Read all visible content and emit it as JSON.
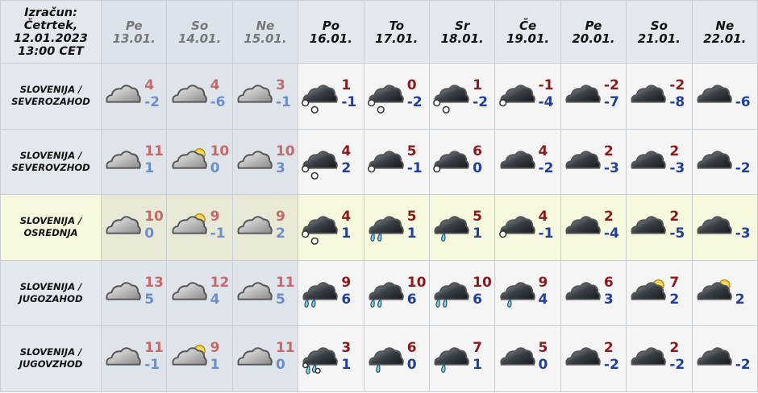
{
  "header": {
    "issued": [
      "Izračun:",
      "Četrtek,",
      "12.01.2023",
      "13:00 CET"
    ],
    "days": [
      {
        "day": "Pe",
        "date": "13.01.",
        "past": true
      },
      {
        "day": "So",
        "date": "14.01.",
        "past": true
      },
      {
        "day": "Ne",
        "date": "15.01.",
        "past": true
      },
      {
        "day": "Po",
        "date": "16.01."
      },
      {
        "day": "To",
        "date": "17.01."
      },
      {
        "day": "Sr",
        "date": "18.01."
      },
      {
        "day": "Če",
        "date": "19.01."
      },
      {
        "day": "Pe",
        "date": "20.01."
      },
      {
        "day": "So",
        "date": "21.01."
      },
      {
        "day": "Ne",
        "date": "22.01."
      }
    ]
  },
  "colors": {
    "past_max": "#c46a6a",
    "past_min": "#6a8fcc",
    "max": "#8b1a1a",
    "min": "#1f3f9a",
    "highlight_row": "#f7f9de"
  },
  "rows": [
    {
      "region": [
        "SLOVENIJA /",
        "SEVEROZAHOD"
      ],
      "cells": [
        {
          "icon": "overcast",
          "max": "4",
          "min": "-2"
        },
        {
          "icon": "overcast",
          "max": "4",
          "min": "-6"
        },
        {
          "icon": "overcast",
          "max": "3",
          "min": "-1"
        },
        {
          "icon": "snow",
          "max": "1",
          "min": "-1"
        },
        {
          "icon": "snow",
          "max": "0",
          "min": "-2"
        },
        {
          "icon": "snow",
          "max": "1",
          "min": "-2"
        },
        {
          "icon": "light-snow",
          "max": "-1",
          "min": "-4"
        },
        {
          "icon": "overcast-dark",
          "max": "-2",
          "min": "-7"
        },
        {
          "icon": "overcast-dark",
          "max": "-2",
          "min": "-8"
        },
        {
          "icon": "overcast-dark",
          "max": "",
          "min": "-6"
        }
      ]
    },
    {
      "region": [
        "SLOVENIJA /",
        "SEVEROVZHOD"
      ],
      "cells": [
        {
          "icon": "overcast",
          "max": "11",
          "min": "1"
        },
        {
          "icon": "partly-sunny",
          "max": "10",
          "min": "0"
        },
        {
          "icon": "overcast",
          "max": "10",
          "min": "3"
        },
        {
          "icon": "snow",
          "max": "4",
          "min": "2"
        },
        {
          "icon": "light-snow",
          "max": "5",
          "min": "-1"
        },
        {
          "icon": "light-snow",
          "max": "6",
          "min": "0"
        },
        {
          "icon": "overcast-dark",
          "max": "4",
          "min": "-2"
        },
        {
          "icon": "overcast-dark",
          "max": "2",
          "min": "-3"
        },
        {
          "icon": "overcast-dark",
          "max": "2",
          "min": "-3"
        },
        {
          "icon": "overcast-dark",
          "max": "",
          "min": "-2"
        }
      ]
    },
    {
      "region": [
        "SLOVENIJA /",
        "OSREDNJA"
      ],
      "highlight": true,
      "cells": [
        {
          "icon": "overcast",
          "max": "10",
          "min": "0"
        },
        {
          "icon": "partly-sunny",
          "max": "9",
          "min": "-1"
        },
        {
          "icon": "overcast",
          "max": "9",
          "min": "2"
        },
        {
          "icon": "snow",
          "max": "4",
          "min": "1"
        },
        {
          "icon": "heavy-rain",
          "max": "5",
          "min": "1"
        },
        {
          "icon": "rain",
          "max": "5",
          "min": "1"
        },
        {
          "icon": "light-snow",
          "max": "4",
          "min": "-1"
        },
        {
          "icon": "overcast-dark",
          "max": "2",
          "min": "-4"
        },
        {
          "icon": "overcast-dark",
          "max": "2",
          "min": "-5"
        },
        {
          "icon": "overcast-dark",
          "max": "",
          "min": "-3"
        }
      ]
    },
    {
      "region": [
        "SLOVENIJA /",
        "JUGOZAHOD"
      ],
      "cells": [
        {
          "icon": "overcast",
          "max": "13",
          "min": "5"
        },
        {
          "icon": "overcast",
          "max": "12",
          "min": "4"
        },
        {
          "icon": "overcast",
          "max": "11",
          "min": "5"
        },
        {
          "icon": "heavy-rain",
          "max": "9",
          "min": "6"
        },
        {
          "icon": "heavy-rain",
          "max": "10",
          "min": "6"
        },
        {
          "icon": "heavy-rain",
          "max": "10",
          "min": "6"
        },
        {
          "icon": "rain",
          "max": "9",
          "min": "4"
        },
        {
          "icon": "overcast-dark",
          "max": "6",
          "min": "3"
        },
        {
          "icon": "dark-partly-sunny",
          "max": "7",
          "min": "2"
        },
        {
          "icon": "dark-partly-sunny",
          "max": "",
          "min": "2"
        }
      ]
    },
    {
      "region": [
        "SLOVENIJA /",
        "JUGOVZHOD"
      ],
      "cells": [
        {
          "icon": "overcast",
          "max": "11",
          "min": "-1"
        },
        {
          "icon": "partly-sunny",
          "max": "9",
          "min": "1"
        },
        {
          "icon": "overcast",
          "max": "11",
          "min": "0"
        },
        {
          "icon": "sleet",
          "max": "3",
          "min": "1"
        },
        {
          "icon": "rain",
          "max": "6",
          "min": "0"
        },
        {
          "icon": "rain",
          "max": "7",
          "min": "1"
        },
        {
          "icon": "overcast-dark",
          "max": "5",
          "min": "0"
        },
        {
          "icon": "overcast-dark",
          "max": "2",
          "min": "-2"
        },
        {
          "icon": "overcast-dark",
          "max": "2",
          "min": "-2"
        },
        {
          "icon": "overcast-dark",
          "max": "",
          "min": "-2"
        }
      ]
    }
  ]
}
